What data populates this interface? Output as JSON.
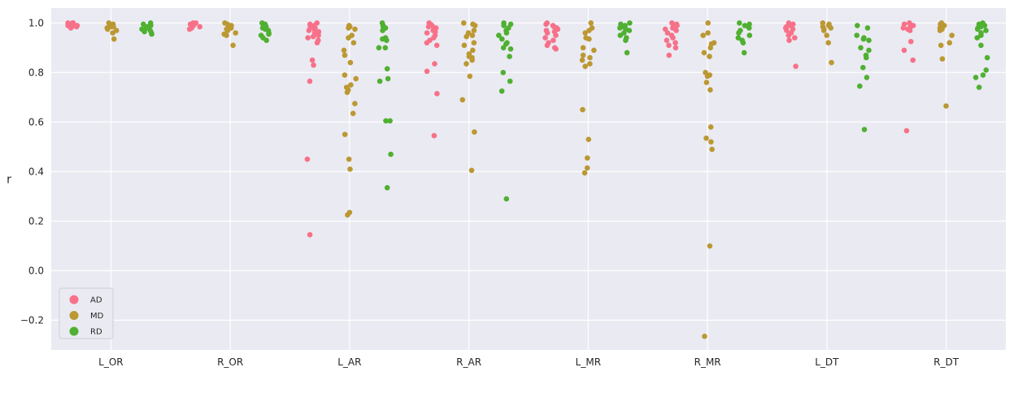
{
  "chart_data": {
    "type": "scatter",
    "subtype": "strip",
    "ylabel": "r",
    "xlabel": "",
    "ylim": [
      -0.32,
      1.06
    ],
    "yticks": [
      -0.2,
      0.0,
      0.2,
      0.4,
      0.6,
      0.8,
      1.0
    ],
    "ytick_labels": [
      "−0.2",
      "0.0",
      "0.2",
      "0.4",
      "0.6",
      "0.8",
      "1.0"
    ],
    "grid": true,
    "legend_position": "lower-left",
    "categories": [
      "L_OR",
      "R_OR",
      "L_AR",
      "R_AR",
      "L_MR",
      "R_MR",
      "L_DT",
      "R_DT"
    ],
    "series": [
      {
        "name": "AD",
        "color": "#f77189",
        "values": [
          [
            1.0,
            1.0,
            1.0,
            0.995,
            0.995,
            0.995,
            0.99,
            0.99,
            0.99,
            0.985,
            0.985,
            0.98
          ],
          [
            1.0,
            1.0,
            0.995,
            0.995,
            0.99,
            0.99,
            0.985,
            0.985,
            0.98,
            0.975
          ],
          [
            1.0,
            0.995,
            0.99,
            0.985,
            0.98,
            0.975,
            0.97,
            0.965,
            0.96,
            0.95,
            0.945,
            0.94,
            0.93,
            0.92,
            0.85,
            0.83,
            0.765,
            0.45,
            0.145
          ],
          [
            1.0,
            0.995,
            0.99,
            0.985,
            0.98,
            0.975,
            0.97,
            0.965,
            0.96,
            0.95,
            0.94,
            0.93,
            0.92,
            0.91,
            0.835,
            0.805,
            0.715,
            0.545
          ],
          [
            1.0,
            0.995,
            0.99,
            0.985,
            0.98,
            0.975,
            0.97,
            0.965,
            0.96,
            0.95,
            0.94,
            0.93,
            0.92,
            0.91,
            0.9,
            0.895
          ],
          [
            1.0,
            0.995,
            0.99,
            0.985,
            0.98,
            0.975,
            0.97,
            0.96,
            0.95,
            0.94,
            0.93,
            0.92,
            0.91,
            0.9,
            0.87
          ],
          [
            1.0,
            0.995,
            0.99,
            0.985,
            0.98,
            0.975,
            0.97,
            0.96,
            0.95,
            0.94,
            0.93,
            0.825
          ],
          [
            1.0,
            0.995,
            0.99,
            0.985,
            0.98,
            0.975,
            0.97,
            0.925,
            0.89,
            0.85,
            0.565
          ]
        ]
      },
      {
        "name": "MD",
        "color": "#bb9832",
        "values": [
          [
            1.0,
            0.995,
            0.99,
            0.99,
            0.985,
            0.985,
            0.98,
            0.975,
            0.97,
            0.96,
            0.935
          ],
          [
            1.0,
            0.995,
            0.99,
            0.985,
            0.98,
            0.975,
            0.97,
            0.96,
            0.955,
            0.95,
            0.91
          ],
          [
            0.99,
            0.985,
            0.98,
            0.975,
            0.95,
            0.94,
            0.92,
            0.89,
            0.87,
            0.84,
            0.79,
            0.775,
            0.75,
            0.74,
            0.73,
            0.72,
            0.675,
            0.635,
            0.55,
            0.45,
            0.41,
            0.235,
            0.225
          ],
          [
            1.0,
            0.995,
            0.99,
            0.97,
            0.96,
            0.95,
            0.945,
            0.92,
            0.91,
            0.89,
            0.875,
            0.865,
            0.86,
            0.85,
            0.835,
            0.785,
            0.69,
            0.56,
            0.405
          ],
          [
            1.0,
            0.98,
            0.97,
            0.96,
            0.94,
            0.935,
            0.9,
            0.89,
            0.87,
            0.86,
            0.85,
            0.835,
            0.825,
            0.65,
            0.53,
            0.455,
            0.415,
            0.395
          ],
          [
            1.0,
            0.96,
            0.95,
            0.92,
            0.915,
            0.9,
            0.88,
            0.865,
            0.8,
            0.79,
            0.785,
            0.76,
            0.73,
            0.58,
            0.535,
            0.52,
            0.49,
            0.1,
            -0.265
          ],
          [
            1.0,
            0.995,
            0.99,
            0.985,
            0.98,
            0.975,
            0.97,
            0.95,
            0.92,
            0.84
          ],
          [
            1.0,
            0.995,
            0.99,
            0.985,
            0.98,
            0.975,
            0.97,
            0.95,
            0.92,
            0.91,
            0.855,
            0.665
          ]
        ]
      },
      {
        "name": "RD",
        "color": "#4fb031",
        "values": [
          [
            1.0,
            0.995,
            0.99,
            0.985,
            0.98,
            0.975,
            0.97,
            0.965,
            0.96,
            0.955
          ],
          [
            1.0,
            0.995,
            0.99,
            0.985,
            0.98,
            0.975,
            0.97,
            0.96,
            0.955,
            0.95,
            0.94,
            0.93
          ],
          [
            1.0,
            0.99,
            0.985,
            0.98,
            0.97,
            0.94,
            0.935,
            0.93,
            0.9,
            0.9,
            0.815,
            0.775,
            0.765,
            0.605,
            0.605,
            0.47,
            0.335
          ],
          [
            1.0,
            0.995,
            0.99,
            0.98,
            0.97,
            0.96,
            0.95,
            0.935,
            0.92,
            0.915,
            0.9,
            0.895,
            0.865,
            0.8,
            0.765,
            0.725,
            0.29
          ],
          [
            1.0,
            0.995,
            0.99,
            0.985,
            0.98,
            0.975,
            0.97,
            0.96,
            0.95,
            0.94,
            0.93,
            0.88
          ],
          [
            1.0,
            0.995,
            0.99,
            0.985,
            0.98,
            0.97,
            0.96,
            0.95,
            0.94,
            0.93,
            0.92,
            0.88
          ],
          [
            0.99,
            0.98,
            0.95,
            0.94,
            0.935,
            0.93,
            0.9,
            0.89,
            0.87,
            0.86,
            0.82,
            0.78,
            0.745,
            0.57
          ],
          [
            1.0,
            0.995,
            0.99,
            0.985,
            0.98,
            0.975,
            0.97,
            0.96,
            0.95,
            0.94,
            0.91,
            0.86,
            0.81,
            0.79,
            0.78,
            0.74
          ]
        ]
      }
    ]
  }
}
